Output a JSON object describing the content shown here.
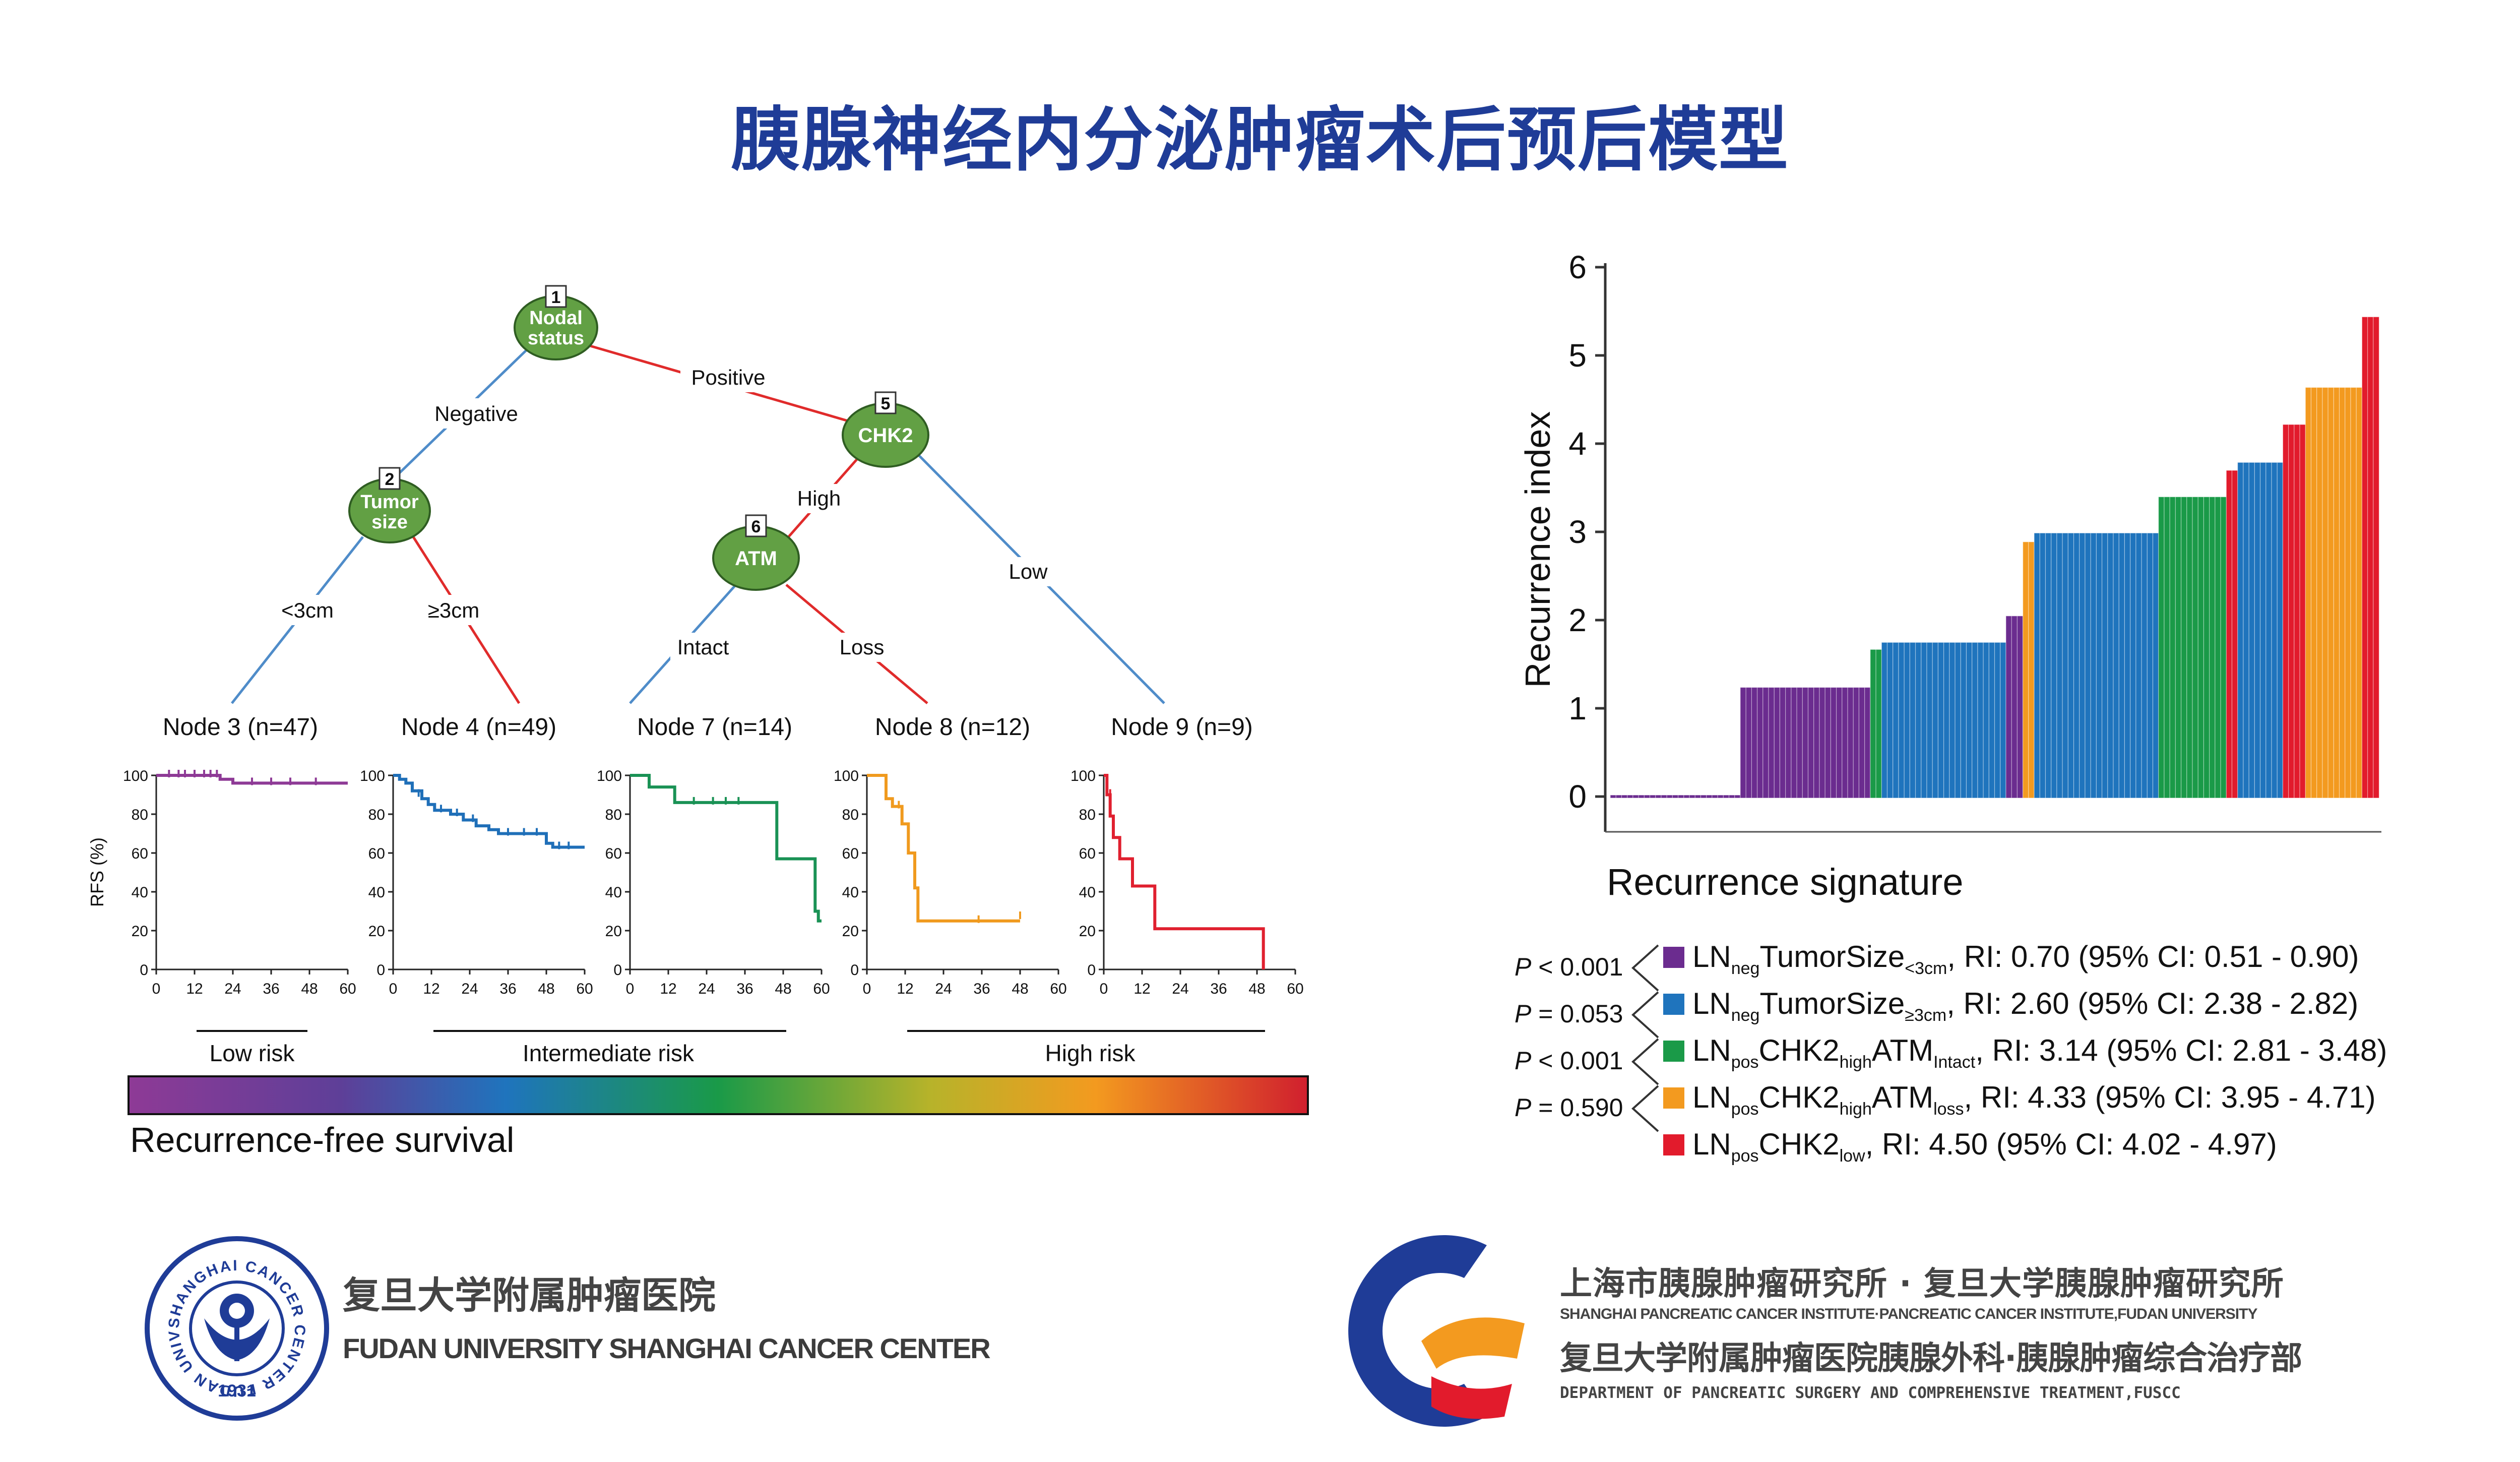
{
  "title": "胰腺神经内分泌肿瘤术后预后模型",
  "tree": {
    "nodes": [
      {
        "id": "n1",
        "num": "1",
        "lines": [
          "Nodal",
          "status"
        ]
      },
      {
        "id": "n2",
        "num": "2",
        "lines": [
          "Tumor",
          "size"
        ]
      },
      {
        "id": "n5",
        "num": "5",
        "lines": [
          "CHK2"
        ]
      },
      {
        "id": "n6",
        "num": "6",
        "lines": [
          "ATM"
        ]
      }
    ],
    "edge_labels": {
      "negative": "Negative",
      "positive": "Positive",
      "lt3": "<3cm",
      "ge3": "≥3cm",
      "high": "High",
      "low": "Low",
      "intact": "Intact",
      "loss": "Loss"
    },
    "terminals": [
      "Node 3 (n=47)",
      "Node 4 (n=49)",
      "Node 7 (n=14)",
      "Node 8 (n=12)",
      "Node 9 (n=9)"
    ]
  },
  "km": {
    "ylabel": "RFS (%)",
    "yticks": [
      "0",
      "20",
      "40",
      "60",
      "80",
      "100"
    ],
    "xticks": [
      "0",
      "12",
      "24",
      "36",
      "48",
      "60"
    ],
    "panels": [
      {
        "name": "node3",
        "color": "#8e3a96",
        "points": [
          [
            0,
            100
          ],
          [
            20,
            100
          ],
          [
            20,
            98
          ],
          [
            24,
            98
          ],
          [
            24,
            96
          ],
          [
            60,
            96
          ]
        ],
        "censors": [
          [
            4,
            100
          ],
          [
            7,
            100
          ],
          [
            9,
            100
          ],
          [
            12,
            100
          ],
          [
            15,
            100
          ],
          [
            17,
            100
          ],
          [
            19,
            100
          ],
          [
            30,
            96
          ],
          [
            36,
            96
          ],
          [
            42,
            96
          ],
          [
            50,
            96
          ]
        ]
      },
      {
        "name": "node4",
        "color": "#1f6fb8",
        "points": [
          [
            0,
            100
          ],
          [
            2,
            100
          ],
          [
            2,
            98
          ],
          [
            4,
            98
          ],
          [
            4,
            96
          ],
          [
            6,
            96
          ],
          [
            6,
            92
          ],
          [
            9,
            92
          ],
          [
            9,
            88
          ],
          [
            11,
            88
          ],
          [
            11,
            85
          ],
          [
            13,
            85
          ],
          [
            13,
            82
          ],
          [
            18,
            82
          ],
          [
            18,
            80
          ],
          [
            22,
            80
          ],
          [
            22,
            77
          ],
          [
            26,
            77
          ],
          [
            26,
            74
          ],
          [
            30,
            74
          ],
          [
            30,
            72
          ],
          [
            33,
            72
          ],
          [
            33,
            70
          ],
          [
            48,
            70
          ],
          [
            48,
            65
          ],
          [
            50,
            65
          ],
          [
            50,
            63
          ],
          [
            60,
            63
          ]
        ],
        "censors": [
          [
            8,
            90
          ],
          [
            15,
            82
          ],
          [
            20,
            80
          ],
          [
            25,
            77
          ],
          [
            36,
            70
          ],
          [
            41,
            70
          ],
          [
            45,
            70
          ],
          [
            52,
            63
          ],
          [
            55,
            63
          ]
        ]
      },
      {
        "name": "node7",
        "color": "#1a9255",
        "points": [
          [
            0,
            100
          ],
          [
            6,
            100
          ],
          [
            6,
            94
          ],
          [
            14,
            94
          ],
          [
            14,
            86
          ],
          [
            46,
            86
          ],
          [
            46,
            57
          ],
          [
            58,
            57
          ],
          [
            58,
            30
          ],
          [
            59,
            30
          ],
          [
            59,
            25
          ],
          [
            60,
            25
          ]
        ],
        "censors": [
          [
            20,
            86
          ],
          [
            26,
            86
          ],
          [
            30,
            86
          ],
          [
            34,
            86
          ]
        ]
      },
      {
        "name": "node8",
        "color": "#f09a1e",
        "points": [
          [
            0,
            100
          ],
          [
            6,
            100
          ],
          [
            6,
            88
          ],
          [
            8,
            88
          ],
          [
            8,
            84
          ],
          [
            11,
            84
          ],
          [
            11,
            75
          ],
          [
            13,
            75
          ],
          [
            13,
            60
          ],
          [
            15,
            60
          ],
          [
            15,
            42
          ],
          [
            16,
            42
          ],
          [
            16,
            25
          ],
          [
            48,
            25
          ]
        ],
        "censors": [
          [
            10,
            84
          ],
          [
            35,
            25
          ],
          [
            48,
            27
          ]
        ]
      },
      {
        "name": "node9",
        "color": "#e0202f",
        "points": [
          [
            0,
            100
          ],
          [
            1,
            100
          ],
          [
            1,
            90
          ],
          [
            2,
            90
          ],
          [
            2,
            79
          ],
          [
            3,
            79
          ],
          [
            3,
            68
          ],
          [
            5,
            68
          ],
          [
            5,
            57
          ],
          [
            9,
            57
          ],
          [
            9,
            43
          ],
          [
            16,
            43
          ],
          [
            16,
            21
          ],
          [
            50,
            21
          ],
          [
            50,
            0
          ]
        ],
        "censors": [
          [
            2,
            90
          ]
        ]
      }
    ]
  },
  "risk_groups": [
    "Low risk",
    "Intermediate risk",
    "High risk"
  ],
  "gradient_label": "Recurrence-free survival",
  "bar_chart": {
    "ylabel": "Recurrence index",
    "xlabel": "Recurrence signature",
    "yticks": [
      "0",
      "1",
      "2",
      "3",
      "4",
      "5",
      "6"
    ]
  },
  "chart_data": {
    "type": "bar",
    "xlabel": "Recurrence signature",
    "ylabel": "Recurrence index",
    "ylim": [
      0,
      6
    ],
    "groups": [
      {
        "value": 0.0,
        "count": 23,
        "color": "#6b2c8f"
      },
      {
        "value": 1.22,
        "count": 23,
        "color": "#6b2c8f"
      },
      {
        "value": 1.65,
        "count": 2,
        "color": "#1a9a48"
      },
      {
        "value": 1.73,
        "count": 22,
        "color": "#1f74bd"
      },
      {
        "value": 2.03,
        "count": 3,
        "color": "#6b2c8f"
      },
      {
        "value": 2.87,
        "count": 2,
        "color": "#f39a1f"
      },
      {
        "value": 2.97,
        "count": 22,
        "color": "#1f74bd"
      },
      {
        "value": 3.38,
        "count": 12,
        "color": "#1a9a48"
      },
      {
        "value": 3.68,
        "count": 2,
        "color": "#e21b2c"
      },
      {
        "value": 3.77,
        "count": 8,
        "color": "#1f74bd"
      },
      {
        "value": 4.2,
        "count": 4,
        "color": "#e21b2c"
      },
      {
        "value": 4.62,
        "count": 10,
        "color": "#f39a1f"
      },
      {
        "value": 5.42,
        "count": 3,
        "color": "#e21b2c"
      }
    ]
  },
  "legend": [
    {
      "color": "#6b2c8f",
      "ln": "LN",
      "sub1": "neg",
      "mid": "TumorSize",
      "sub2": "<3cm",
      "rest": ", RI: 0.70 (95% CI: 0.51 - 0.90)"
    },
    {
      "color": "#1f74bd",
      "ln": "LN",
      "sub1": "neg",
      "mid": "TumorSize",
      "sub2": "≥3cm",
      "rest": ", RI: 2.60 (95% CI: 2.38 - 2.82)"
    },
    {
      "color": "#1a9a48",
      "ln": "LN",
      "sub1": "pos",
      "mid": "CHK2",
      "sub2": "high",
      "mid2": "ATM",
      "sub3": "Intact",
      "rest": ", RI: 3.14 (95% CI: 2.81 - 3.48)"
    },
    {
      "color": "#f39a1f",
      "ln": "LN",
      "sub1": "pos",
      "mid": "CHK2",
      "sub2": "high",
      "mid2": "ATM",
      "sub3": "loss",
      "rest": ", RI: 4.33 (95% CI: 3.95 - 4.71)"
    },
    {
      "color": "#e21b2c",
      "ln": "LN",
      "sub1": "pos",
      "mid": "CHK2",
      "sub2": "low",
      "rest": ", RI: 4.50 (95% CI: 4.02 - 4.97)"
    }
  ],
  "pvalues": [
    {
      "p": "P",
      "rest": " < 0.001"
    },
    {
      "p": "P",
      "rest": " = 0.053"
    },
    {
      "p": "P",
      "rest": " < 0.001"
    },
    {
      "p": "P",
      "rest": " = 0.590"
    }
  ],
  "footer": {
    "fudan_cn": "复旦大学附属肿瘤医院",
    "fudan_en": "FUDAN UNIVERSITY SHANGHAI CANCER CENTER",
    "seal_ring_text": "SHANGHAI CANCER CENTER FUDAN UNIVERSITY",
    "seal_year": "1931",
    "inst_cn1": "上海市胰腺肿瘤研究所 · 复旦大学胰腺肿瘤研究所",
    "inst_en1": "SHANGHAI PANCREATIC CANCER INSTITUTE·PANCREATIC CANCER INSTITUTE,FUDAN UNIVERSITY",
    "inst_cn2": "复旦大学附属肿瘤医院胰腺外科·胰腺肿瘤综合治疗部",
    "inst_en2": "DEPARTMENT OF PANCREATIC SURGERY AND COMPREHENSIVE TREATMENT,FUSCC"
  }
}
